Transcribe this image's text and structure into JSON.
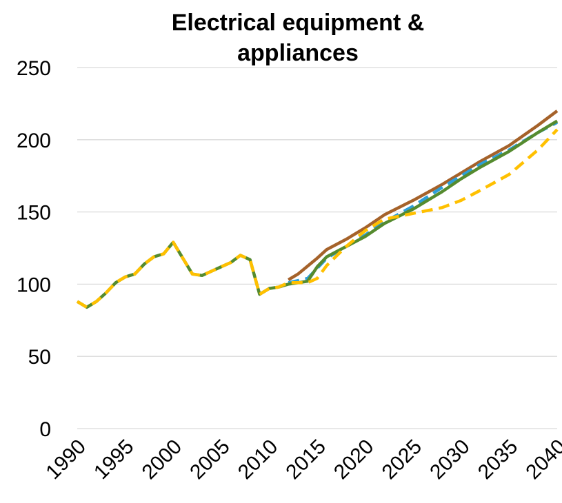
{
  "chart_data": {
    "type": "line",
    "title_line1": "Electrical equipment &",
    "title_line2": "appliances",
    "xlabel": "",
    "ylabel": "",
    "xlim": [
      1990,
      2040
    ],
    "ylim": [
      0,
      250
    ],
    "yticks": [
      0,
      50,
      100,
      150,
      200,
      250
    ],
    "xticks": [
      1990,
      1995,
      2000,
      2005,
      2010,
      2015,
      2020,
      2025,
      2030,
      2035,
      2040
    ],
    "grid": true,
    "legend": "none",
    "series": [
      {
        "color": "#a5622a",
        "style": "solid",
        "x": [
          2012,
          2013,
          2015,
          2016,
          2018,
          2020,
          2022,
          2025,
          2028,
          2030,
          2032,
          2035,
          2038,
          2040
        ],
        "y": [
          103,
          107,
          118,
          124,
          131,
          139,
          148,
          158,
          169,
          177,
          185,
          196,
          210,
          220
        ]
      },
      {
        "color": "#2e9fd8",
        "style": "dashed",
        "x": [
          2012,
          2014,
          2016,
          2018,
          2020,
          2022,
          2025,
          2028,
          2030,
          2032,
          2035,
          2038,
          2040
        ],
        "y": [
          101,
          104,
          118,
          126,
          134,
          143,
          154,
          167,
          175,
          183,
          193,
          205,
          212
        ]
      },
      {
        "color": "#558b2f",
        "style": "solid",
        "x": [
          1990,
          1991,
          1992,
          1993,
          1994,
          1995,
          1996,
          1997,
          1998,
          1999,
          2000,
          2001,
          2002,
          2003,
          2004,
          2005,
          2006,
          2007,
          2008,
          2009,
          2010,
          2011,
          2012,
          2013,
          2014,
          2015,
          2016,
          2018,
          2020,
          2022,
          2025,
          2028,
          2030,
          2032,
          2035,
          2038,
          2040
        ],
        "y": [
          88,
          84,
          88,
          94,
          101,
          105,
          107,
          114,
          119,
          121,
          129,
          118,
          107,
          106,
          109,
          112,
          115,
          120,
          117,
          93,
          97,
          98,
          100,
          101,
          102,
          112,
          119,
          126,
          133,
          142,
          152,
          164,
          173,
          181,
          192,
          205,
          213
        ]
      },
      {
        "color": "#ffc000",
        "style": "dashed",
        "x": [
          1990,
          1991,
          1992,
          1993,
          1994,
          1995,
          1996,
          1997,
          1998,
          1999,
          2000,
          2001,
          2002,
          2003,
          2004,
          2005,
          2006,
          2007,
          2008,
          2009,
          2010,
          2011,
          2012,
          2013,
          2014,
          2015,
          2016,
          2018,
          2020,
          2022,
          2025,
          2028,
          2030,
          2032,
          2035,
          2038,
          2040
        ],
        "y": [
          88,
          84,
          88,
          94,
          101,
          105,
          107,
          114,
          119,
          121,
          129,
          118,
          107,
          106,
          109,
          112,
          115,
          120,
          117,
          93,
          97,
          98,
          101,
          101,
          101,
          104,
          113,
          126,
          137,
          145,
          149,
          153,
          158,
          165,
          176,
          193,
          207
        ]
      }
    ]
  }
}
